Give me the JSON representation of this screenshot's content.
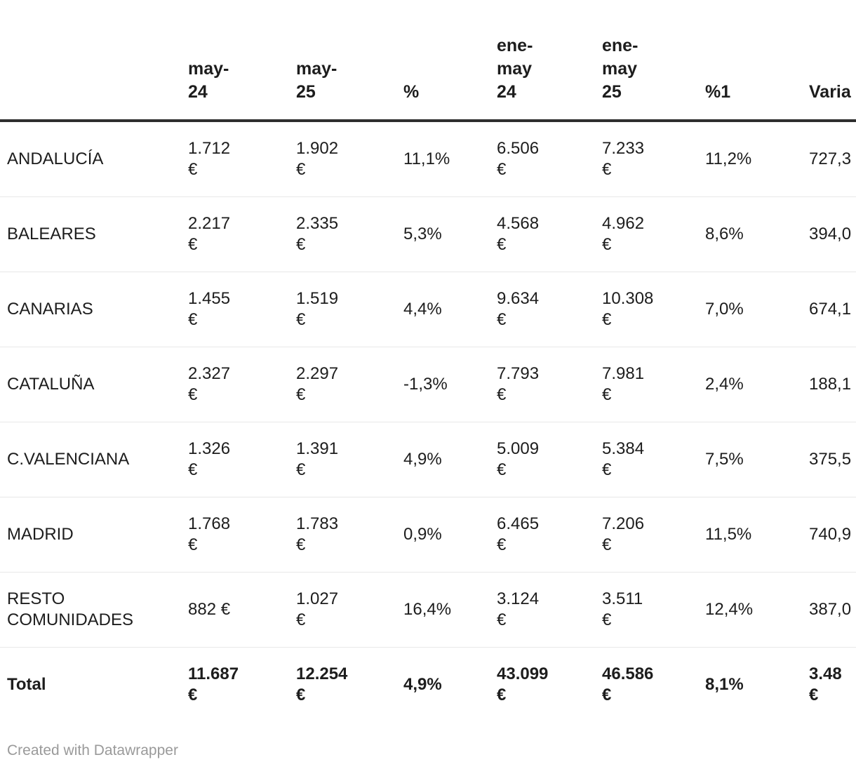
{
  "colors": {
    "text": "#1d1d1d",
    "header_rule": "#2e2e2e",
    "row_rule": "#e8e8e8",
    "credit_text": "#9a9a9a",
    "background": "#ffffff"
  },
  "footer": {
    "credit": "Created with Datawrapper"
  },
  "table": {
    "header": {
      "region": "",
      "may24": "may-\n24",
      "may25": "may-\n25",
      "pct": "%",
      "enemay24": "ene-\nmay\n24",
      "enemay25": "ene-\nmay\n25",
      "pct1": "%1",
      "vari": "Varia"
    },
    "rows": [
      {
        "region": "ANDALUCÍA",
        "may24": "1.712\n€",
        "may25": "1.902\n€",
        "pct": "11,1%",
        "enemay24": "6.506\n€",
        "enemay25": "7.233\n€",
        "pct1": "11,2%",
        "vari": "727,3"
      },
      {
        "region": "BALEARES",
        "may24": "2.217\n€",
        "may25": "2.335\n€",
        "pct": "5,3%",
        "enemay24": "4.568\n€",
        "enemay25": "4.962\n€",
        "pct1": "8,6%",
        "vari": "394,0"
      },
      {
        "region": "CANARIAS",
        "may24": "1.455\n€",
        "may25": "1.519\n€",
        "pct": "4,4%",
        "enemay24": "9.634\n€",
        "enemay25": "10.308\n€",
        "pct1": "7,0%",
        "vari": "674,1"
      },
      {
        "region": "CATALUÑA",
        "may24": "2.327\n€",
        "may25": "2.297\n€",
        "pct": "-1,3%",
        "enemay24": "7.793\n€",
        "enemay25": "7.981\n€",
        "pct1": "2,4%",
        "vari": "188,1"
      },
      {
        "region": "C.VALENCIANA",
        "may24": "1.326\n€",
        "may25": "1.391\n€",
        "pct": "4,9%",
        "enemay24": "5.009\n€",
        "enemay25": "5.384\n€",
        "pct1": "7,5%",
        "vari": "375,5"
      },
      {
        "region": "MADRID",
        "may24": "1.768\n€",
        "may25": "1.783\n€",
        "pct": "0,9%",
        "enemay24": "6.465\n€",
        "enemay25": "7.206\n€",
        "pct1": "11,5%",
        "vari": "740,9"
      },
      {
        "region": "RESTO\nCOMUNIDADES",
        "may24": "882 €",
        "may25": "1.027\n€",
        "pct": "16,4%",
        "enemay24": "3.124\n€",
        "enemay25": "3.511\n€",
        "pct1": "12,4%",
        "vari": "387,0"
      }
    ],
    "total": {
      "region": "Total",
      "may24": "11.687\n€",
      "may25": "12.254\n€",
      "pct": "4,9%",
      "enemay24": "43.099\n€",
      "enemay25": "46.586\n€",
      "pct1": "8,1%",
      "vari": "3.48\n€"
    }
  },
  "chart_data": {
    "type": "table",
    "title": "",
    "columns": [
      "",
      "may-24",
      "may-25",
      "%",
      "ene-may 24",
      "ene-may 25",
      "%1",
      "Varia…"
    ],
    "rows": [
      [
        "ANDALUCÍA",
        "1.712 €",
        "1.902 €",
        "11,1%",
        "6.506 €",
        "7.233 €",
        "11,2%",
        "727,3…"
      ],
      [
        "BALEARES",
        "2.217 €",
        "2.335 €",
        "5,3%",
        "4.568 €",
        "4.962 €",
        "8,6%",
        "394,0…"
      ],
      [
        "CANARIAS",
        "1.455 €",
        "1.519 €",
        "4,4%",
        "9.634 €",
        "10.308 €",
        "7,0%",
        "674,1…"
      ],
      [
        "CATALUÑA",
        "2.327 €",
        "2.297 €",
        "-1,3%",
        "7.793 €",
        "7.981 €",
        "2,4%",
        "188,1…"
      ],
      [
        "C.VALENCIANA",
        "1.326 €",
        "1.391 €",
        "4,9%",
        "5.009 €",
        "5.384 €",
        "7,5%",
        "375,5…"
      ],
      [
        "MADRID",
        "1.768 €",
        "1.783 €",
        "0,9%",
        "6.465 €",
        "7.206 €",
        "11,5%",
        "740,9…"
      ],
      [
        "RESTO COMUNIDADES",
        "882 €",
        "1.027 €",
        "16,4%",
        "3.124 €",
        "3.511 €",
        "12,4%",
        "387,0…"
      ],
      [
        "Total",
        "11.687 €",
        "12.254 €",
        "4,9%",
        "43.099 €",
        "46.586 €",
        "8,1%",
        "3.48… €"
      ]
    ],
    "notes": "Last column clipped at right edge of viewport; footer credit: Created with Datawrapper"
  }
}
